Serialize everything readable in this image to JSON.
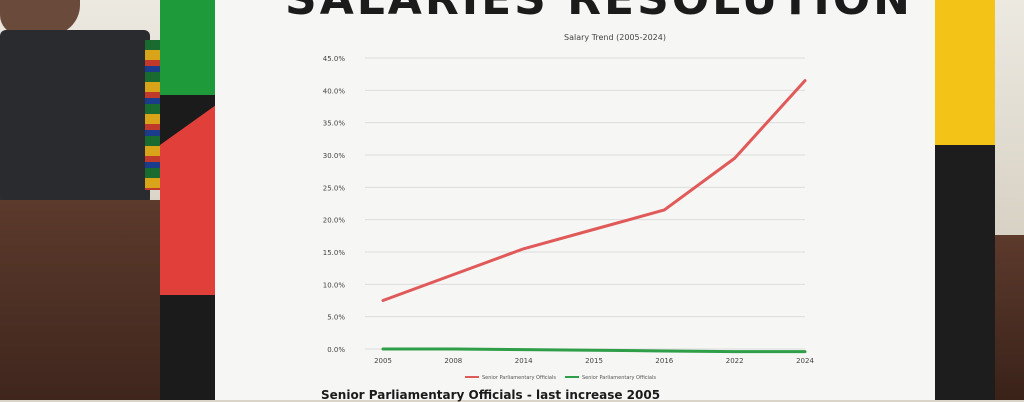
{
  "headline": "SALARIES RESOLUTION",
  "caption": "Senior Parliamentary Officials - last increase 2005",
  "colors": {
    "red_series": "#e05a5a",
    "green_series": "#2e9e48",
    "board_green": "#1e9a3b",
    "board_red": "#e1403a",
    "board_yellow": "#f3c317"
  },
  "chart_data": {
    "type": "line",
    "title": "Salary Trend (2005-2024)",
    "categories": [
      "2005",
      "2008",
      "2014",
      "2015",
      "2016",
      "2022",
      "2024"
    ],
    "y_ticks": [
      "0.0%",
      "5.0%",
      "10.0%",
      "15.0%",
      "20.0%",
      "25.0%",
      "30.0%",
      "35.0%",
      "40.0%",
      "45.0%"
    ],
    "ylim": [
      0,
      45
    ],
    "grid": true,
    "legend_position": "bottom",
    "series": [
      {
        "name": "Senior Parliamentary Officials",
        "color": "#e05a5a",
        "values": [
          7.5,
          11.5,
          15.5,
          18.5,
          21.5,
          29.5,
          41.5
        ]
      },
      {
        "name": "Senior Parliamentary Officials",
        "color": "#2e9e48",
        "values": [
          0.0,
          0.0,
          -0.1,
          -0.2,
          -0.3,
          -0.4,
          -0.4
        ]
      }
    ]
  }
}
